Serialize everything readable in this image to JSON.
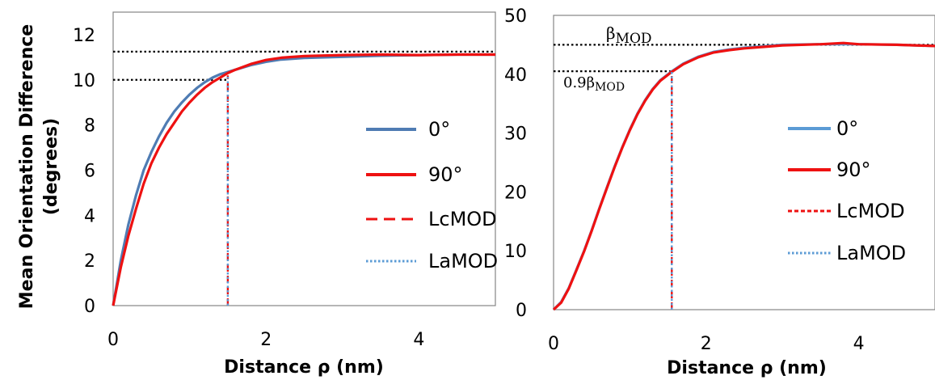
{
  "chart_data": [
    {
      "type": "line",
      "title": "",
      "xlabel": "Distance ρ (nm)",
      "ylabel": "Mean Orientation Difference (degrees)",
      "ylabel_lines": [
        "Mean Orientation Difference",
        "(degrees)"
      ],
      "xlim": [
        0,
        5
      ],
      "ylim": [
        0,
        13
      ],
      "xticks": [
        0,
        2,
        4
      ],
      "yticks": [
        0,
        2,
        4,
        6,
        8,
        10,
        12
      ],
      "grid": false,
      "legend_position": "right",
      "series": [
        {
          "name": "0°",
          "color": "#4f7cb3",
          "style": "solid",
          "x": [
            0,
            0.1,
            0.2,
            0.3,
            0.4,
            0.5,
            0.6,
            0.7,
            0.8,
            0.9,
            1.0,
            1.1,
            1.2,
            1.3,
            1.4,
            1.5,
            1.6,
            1.8,
            2.0,
            2.2,
            2.5,
            3.0,
            3.5,
            4.0,
            4.5,
            5.0
          ],
          "y": [
            0,
            2.0,
            3.6,
            4.9,
            6.0,
            6.8,
            7.5,
            8.1,
            8.6,
            9.0,
            9.35,
            9.65,
            9.9,
            10.1,
            10.25,
            10.35,
            10.45,
            10.65,
            10.8,
            10.9,
            10.97,
            11.02,
            11.07,
            11.1,
            11.12,
            11.12
          ]
        },
        {
          "name": "90°",
          "color": "#ee1111",
          "style": "solid",
          "x": [
            0,
            0.1,
            0.2,
            0.3,
            0.4,
            0.5,
            0.6,
            0.7,
            0.8,
            0.9,
            1.0,
            1.1,
            1.2,
            1.3,
            1.4,
            1.5,
            1.6,
            1.8,
            2.0,
            2.2,
            2.5,
            3.0,
            3.5,
            4.0,
            4.5,
            5.0
          ],
          "y": [
            0,
            1.7,
            3.1,
            4.3,
            5.4,
            6.3,
            7.0,
            7.6,
            8.1,
            8.6,
            9.0,
            9.35,
            9.65,
            9.9,
            10.1,
            10.3,
            10.45,
            10.7,
            10.88,
            10.98,
            11.05,
            11.1,
            11.12,
            11.1,
            11.12,
            11.12
          ]
        },
        {
          "name": "LcMOD",
          "color": "#ee1111",
          "style": "dashed",
          "x": [
            1.5,
            1.5
          ],
          "y": [
            0,
            10.2
          ]
        },
        {
          "name": "LaMOD",
          "color": "#5b9bd5",
          "style": "dotted",
          "x": [
            1.5,
            1.5
          ],
          "y": [
            0,
            10.2
          ]
        }
      ],
      "reference_lines": [
        {
          "orientation": "horizontal",
          "y": 11.25,
          "x_from": 0,
          "x_to": 5,
          "color": "#000000",
          "style": "dotted"
        },
        {
          "orientation": "horizontal",
          "y": 10,
          "x_from": 0,
          "x_to": 1.5,
          "color": "#000000",
          "style": "dotted"
        }
      ]
    },
    {
      "type": "line",
      "title": "",
      "xlabel": "Distance ρ (nm)",
      "ylabel": "",
      "xlim": [
        0,
        5
      ],
      "ylim": [
        0,
        50
      ],
      "xticks": [
        0,
        2,
        4
      ],
      "yticks": [
        0,
        10,
        20,
        30,
        40,
        50
      ],
      "grid": false,
      "legend_position": "right",
      "series": [
        {
          "name": "0°",
          "color": "#5b9bd5",
          "style": "solid",
          "x": [
            0,
            0.1,
            0.2,
            0.3,
            0.4,
            0.5,
            0.6,
            0.7,
            0.8,
            0.9,
            1.0,
            1.1,
            1.2,
            1.3,
            1.4,
            1.55,
            1.7,
            1.9,
            2.1,
            2.3,
            2.5,
            2.8,
            3.0,
            3.5,
            4.0,
            4.5,
            5.0
          ],
          "y": [
            0,
            1.3,
            3.7,
            6.8,
            10.0,
            13.5,
            17.2,
            20.8,
            24.3,
            27.6,
            30.6,
            33.3,
            35.6,
            37.5,
            39.0,
            40.5,
            41.8,
            43.0,
            43.8,
            44.2,
            44.5,
            44.8,
            45.0,
            45.1,
            45.1,
            45.0,
            44.8
          ]
        },
        {
          "name": "90°",
          "color": "#ee1111",
          "style": "solid",
          "x": [
            0,
            0.1,
            0.2,
            0.3,
            0.4,
            0.5,
            0.6,
            0.7,
            0.8,
            0.9,
            1.0,
            1.1,
            1.2,
            1.3,
            1.4,
            1.55,
            1.7,
            1.9,
            2.1,
            2.3,
            2.5,
            2.8,
            3.0,
            3.5,
            3.8,
            4.0,
            4.5,
            5.0
          ],
          "y": [
            0,
            1.2,
            3.6,
            6.7,
            9.9,
            13.4,
            17.1,
            20.7,
            24.2,
            27.5,
            30.5,
            33.2,
            35.5,
            37.4,
            38.9,
            40.4,
            41.7,
            42.9,
            43.7,
            44.1,
            44.4,
            44.7,
            44.9,
            45.1,
            45.3,
            45.1,
            45.0,
            44.8
          ]
        },
        {
          "name": "LcMOD",
          "color": "#ee1111",
          "style": "dashed",
          "x": [
            1.55,
            1.55
          ],
          "y": [
            0,
            40.4
          ]
        },
        {
          "name": "LaMOD",
          "color": "#5b9bd5",
          "style": "dotted",
          "x": [
            1.55,
            1.55
          ],
          "y": [
            0,
            40.4
          ]
        }
      ],
      "reference_lines": [
        {
          "orientation": "horizontal",
          "y": 45,
          "x_from": 0,
          "x_to": 5,
          "color": "#000000",
          "style": "dotted"
        },
        {
          "orientation": "horizontal",
          "y": 40.5,
          "x_from": 0,
          "x_to": 1.55,
          "color": "#000000",
          "style": "dotted"
        }
      ],
      "annotations": [
        {
          "label": "βMOD",
          "symbol": "β",
          "subscript": "MOD"
        },
        {
          "label": "0.9βMOD",
          "symbol": "0.9β",
          "subscript": "MOD"
        }
      ]
    }
  ]
}
